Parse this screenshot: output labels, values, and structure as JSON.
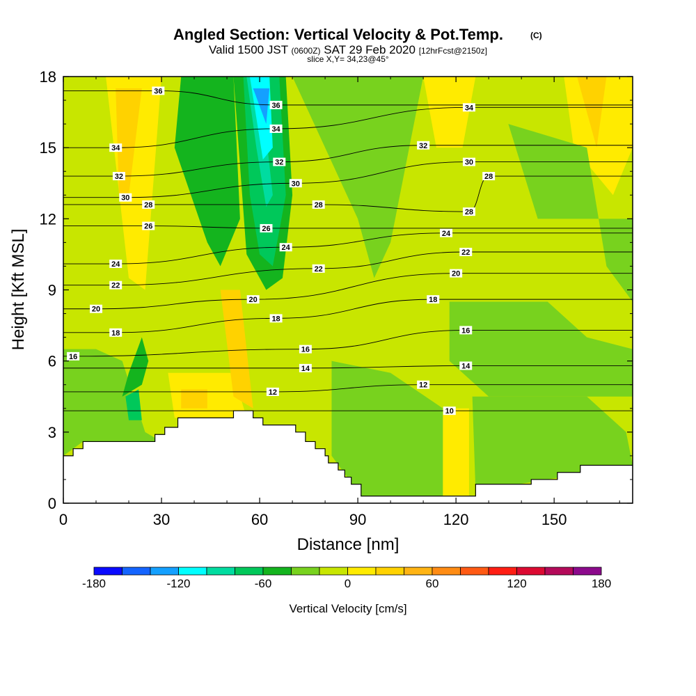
{
  "chart_data": {
    "type": "heatmap",
    "title": "Angled Section: Vertical Velocity & Pot.Temp.",
    "title_mark": "(C)",
    "subtitle_parts": [
      "Valid 1500 JST",
      "(0600Z)",
      "SAT 29 Feb 2020",
      "[12hrFcst@2150z]"
    ],
    "slice_label": "slice X,Y= 34,23@45°",
    "xlabel": "Distance [nm]",
    "ylabel": "Height [Kft MSL]",
    "xlim": [
      0,
      174
    ],
    "ylim": [
      0,
      18
    ],
    "x_ticks": [
      0,
      30,
      60,
      90,
      120,
      150
    ],
    "y_ticks": [
      0,
      3,
      6,
      9,
      12,
      15,
      18
    ],
    "colorbar": {
      "label": "Vertical Velocity [cm/s]",
      "min": -180,
      "max": 180,
      "step": 20,
      "ticks": [
        -180,
        -120,
        -60,
        0,
        60,
        120,
        180
      ],
      "colors": [
        "#0a0aff",
        "#1464ff",
        "#14a0ff",
        "#00ffff",
        "#00dca0",
        "#00c85a",
        "#14b41e",
        "#78d21e",
        "#c8e600",
        "#ffeb00",
        "#ffd200",
        "#ffb414",
        "#ff8c14",
        "#ff5a14",
        "#ff1e14",
        "#dc0a32",
        "#b40a5a",
        "#8c0a8c"
      ]
    },
    "terrain": [
      [
        0,
        2
      ],
      [
        3,
        2
      ],
      [
        3,
        2.3
      ],
      [
        6,
        2.3
      ],
      [
        6,
        2.6
      ],
      [
        28,
        2.6
      ],
      [
        28,
        2.9
      ],
      [
        31,
        2.9
      ],
      [
        31,
        3.2
      ],
      [
        35,
        3.2
      ],
      [
        35,
        3.6
      ],
      [
        52,
        3.6
      ],
      [
        52,
        3.9
      ],
      [
        58,
        3.9
      ],
      [
        58,
        3.6
      ],
      [
        61,
        3.6
      ],
      [
        61,
        3.3
      ],
      [
        71,
        3.3
      ],
      [
        71,
        3
      ],
      [
        74,
        3
      ],
      [
        74,
        2.6
      ],
      [
        77,
        2.6
      ],
      [
        77,
        2.3
      ],
      [
        80,
        2.3
      ],
      [
        80,
        2
      ],
      [
        81,
        2
      ],
      [
        81,
        1.7
      ],
      [
        84,
        1.7
      ],
      [
        84,
        1.4
      ],
      [
        86,
        1.4
      ],
      [
        86,
        1.1
      ],
      [
        88,
        1.1
      ],
      [
        88,
        0.8
      ],
      [
        91,
        0.8
      ],
      [
        91,
        0.3
      ],
      [
        126,
        0.3
      ],
      [
        126,
        0.8
      ],
      [
        143,
        0.8
      ],
      [
        143,
        1
      ],
      [
        151,
        1
      ],
      [
        151,
        1.3
      ],
      [
        158,
        1.3
      ],
      [
        158,
        1.6
      ],
      [
        174,
        1.6
      ]
    ],
    "shading": [
      {
        "v": 10,
        "poly": [
          [
            13,
            18
          ],
          [
            30,
            18
          ],
          [
            25,
            9
          ],
          [
            20,
            9.5
          ]
        ]
      },
      {
        "v": 30,
        "poly": [
          [
            16,
            17.5
          ],
          [
            24,
            17.5
          ],
          [
            20,
            13
          ],
          [
            17,
            13
          ]
        ]
      },
      {
        "v": 10,
        "poly": [
          [
            153,
            18
          ],
          [
            174,
            18
          ],
          [
            174,
            15
          ],
          [
            168,
            13
          ],
          [
            156,
            15
          ]
        ]
      },
      {
        "v": 30,
        "poly": [
          [
            157,
            18
          ],
          [
            166,
            18
          ],
          [
            163,
            15
          ]
        ]
      },
      {
        "v": 10,
        "poly": [
          [
            110,
            18
          ],
          [
            126,
            18
          ],
          [
            122,
            15
          ],
          [
            114,
            15
          ]
        ]
      },
      {
        "v": 10,
        "poly": [
          [
            32,
            5.5
          ],
          [
            52,
            5.5
          ],
          [
            56,
            3.6
          ],
          [
            34,
            3.6
          ]
        ]
      },
      {
        "v": 30,
        "poly": [
          [
            36,
            4.8
          ],
          [
            44,
            4.8
          ],
          [
            44,
            4
          ],
          [
            36,
            4
          ]
        ]
      },
      {
        "v": 30,
        "poly": [
          [
            48,
            9
          ],
          [
            54,
            9
          ],
          [
            58,
            4
          ],
          [
            52,
            4.5
          ]
        ]
      },
      {
        "v": 10,
        "poly": [
          [
            115,
            4
          ],
          [
            124,
            4
          ],
          [
            124,
            0.3
          ],
          [
            115,
            0.3
          ]
        ]
      },
      {
        "v": -30,
        "poly": [
          [
            0,
            6.5
          ],
          [
            10,
            6.5
          ],
          [
            18,
            6
          ],
          [
            25,
            3
          ],
          [
            30,
            2.6
          ],
          [
            6,
            2.6
          ],
          [
            0,
            2
          ]
        ]
      },
      {
        "v": -30,
        "poly": [
          [
            82,
            6
          ],
          [
            100,
            5.5
          ],
          [
            116,
            4
          ],
          [
            116,
            0.3
          ],
          [
            91,
            0.3
          ],
          [
            82,
            2
          ]
        ]
      },
      {
        "v": -30,
        "poly": [
          [
            125,
            4.5
          ],
          [
            160,
            4.5
          ],
          [
            172,
            3
          ],
          [
            174,
            1.6
          ],
          [
            126,
            0.5
          ]
        ]
      },
      {
        "v": -30,
        "poly": [
          [
            118,
            8.5
          ],
          [
            148,
            8.5
          ],
          [
            160,
            7
          ],
          [
            174,
            6.5
          ],
          [
            174,
            4.5
          ],
          [
            130,
            4.5
          ],
          [
            118,
            6
          ]
        ]
      },
      {
        "v": -30,
        "poly": [
          [
            136,
            16
          ],
          [
            160,
            15
          ],
          [
            166,
            10
          ],
          [
            174,
            8.5
          ],
          [
            174,
            12
          ],
          [
            145,
            12
          ]
        ]
      },
      {
        "v": -30,
        "poly": [
          [
            70,
            18
          ],
          [
            110,
            18
          ],
          [
            100,
            11
          ],
          [
            95,
            9.5
          ],
          [
            90,
            12
          ],
          [
            80,
            15
          ]
        ]
      },
      {
        "v": -50,
        "poly": [
          [
            36,
            18
          ],
          [
            52,
            18
          ],
          [
            54,
            12
          ],
          [
            48,
            10
          ],
          [
            44,
            11
          ],
          [
            34,
            15
          ]
        ]
      },
      {
        "v": -50,
        "poly": [
          [
            52,
            18
          ],
          [
            68,
            18
          ],
          [
            70,
            13
          ],
          [
            67,
            9.5
          ],
          [
            62,
            9
          ],
          [
            56,
            10.5
          ]
        ]
      },
      {
        "v": -50,
        "poly": [
          [
            18,
            4.5
          ],
          [
            24,
            5
          ],
          [
            26,
            6
          ],
          [
            24,
            7
          ],
          [
            20,
            5.5
          ]
        ]
      },
      {
        "v": -70,
        "poly": [
          [
            55,
            18
          ],
          [
            66,
            18
          ],
          [
            68,
            13
          ],
          [
            64,
            10
          ],
          [
            60,
            10.5
          ],
          [
            57,
            13
          ]
        ]
      },
      {
        "v": -70,
        "poly": [
          [
            19,
            4.5
          ],
          [
            23,
            4.8
          ],
          [
            24,
            3.5
          ],
          [
            20,
            3.5
          ]
        ]
      },
      {
        "v": -90,
        "poly": [
          [
            56,
            18
          ],
          [
            60,
            18
          ],
          [
            64,
            13
          ],
          [
            62,
            12.5
          ],
          [
            59,
            15
          ]
        ]
      },
      {
        "v": -110,
        "poly": [
          [
            57,
            18
          ],
          [
            63,
            18
          ],
          [
            64,
            15
          ],
          [
            61,
            14.5
          ]
        ]
      },
      {
        "v": -130,
        "poly": [
          [
            58,
            17.5
          ],
          [
            63,
            17.5
          ],
          [
            62,
            16
          ]
        ]
      }
    ],
    "contour_labels": [
      {
        "text": "36",
        "x": 29,
        "y": 17.4
      },
      {
        "text": "36",
        "x": 65,
        "y": 16.8
      },
      {
        "text": "34",
        "x": 65,
        "y": 15.8
      },
      {
        "text": "34",
        "x": 16,
        "y": 15
      },
      {
        "text": "34",
        "x": 124,
        "y": 16.7
      },
      {
        "text": "32",
        "x": 17,
        "y": 13.8
      },
      {
        "text": "32",
        "x": 66,
        "y": 14.4
      },
      {
        "text": "32",
        "x": 110,
        "y": 15.1
      },
      {
        "text": "30",
        "x": 19,
        "y": 12.9
      },
      {
        "text": "30",
        "x": 71,
        "y": 13.5
      },
      {
        "text": "30",
        "x": 124,
        "y": 14.4
      },
      {
        "text": "28",
        "x": 26,
        "y": 12.6
      },
      {
        "text": "28",
        "x": 78,
        "y": 12.6
      },
      {
        "text": "28",
        "x": 130,
        "y": 13.8
      },
      {
        "text": "28",
        "x": 124,
        "y": 12.3
      },
      {
        "text": "26",
        "x": 26,
        "y": 11.7
      },
      {
        "text": "26",
        "x": 62,
        "y": 11.6
      },
      {
        "text": "24",
        "x": 16,
        "y": 10.1
      },
      {
        "text": "24",
        "x": 68,
        "y": 10.8
      },
      {
        "text": "24",
        "x": 117,
        "y": 11.4
      },
      {
        "text": "22",
        "x": 16,
        "y": 9.2
      },
      {
        "text": "22",
        "x": 78,
        "y": 9.9
      },
      {
        "text": "22",
        "x": 123,
        "y": 10.6
      },
      {
        "text": "20",
        "x": 10,
        "y": 8.2
      },
      {
        "text": "20",
        "x": 58,
        "y": 8.6
      },
      {
        "text": "20",
        "x": 120,
        "y": 9.7
      },
      {
        "text": "18",
        "x": 16,
        "y": 7.2
      },
      {
        "text": "18",
        "x": 65,
        "y": 7.8
      },
      {
        "text": "18",
        "x": 113,
        "y": 8.6
      },
      {
        "text": "16",
        "x": 3,
        "y": 6.2
      },
      {
        "text": "16",
        "x": 74,
        "y": 6.5
      },
      {
        "text": "16",
        "x": 123,
        "y": 7.3
      },
      {
        "text": "14",
        "x": 74,
        "y": 5.7
      },
      {
        "text": "14",
        "x": 123,
        "y": 5.8
      },
      {
        "text": "12",
        "x": 64,
        "y": 4.7
      },
      {
        "text": "12",
        "x": 110,
        "y": 5
      },
      {
        "text": "10",
        "x": 118,
        "y": 3.9
      }
    ]
  }
}
